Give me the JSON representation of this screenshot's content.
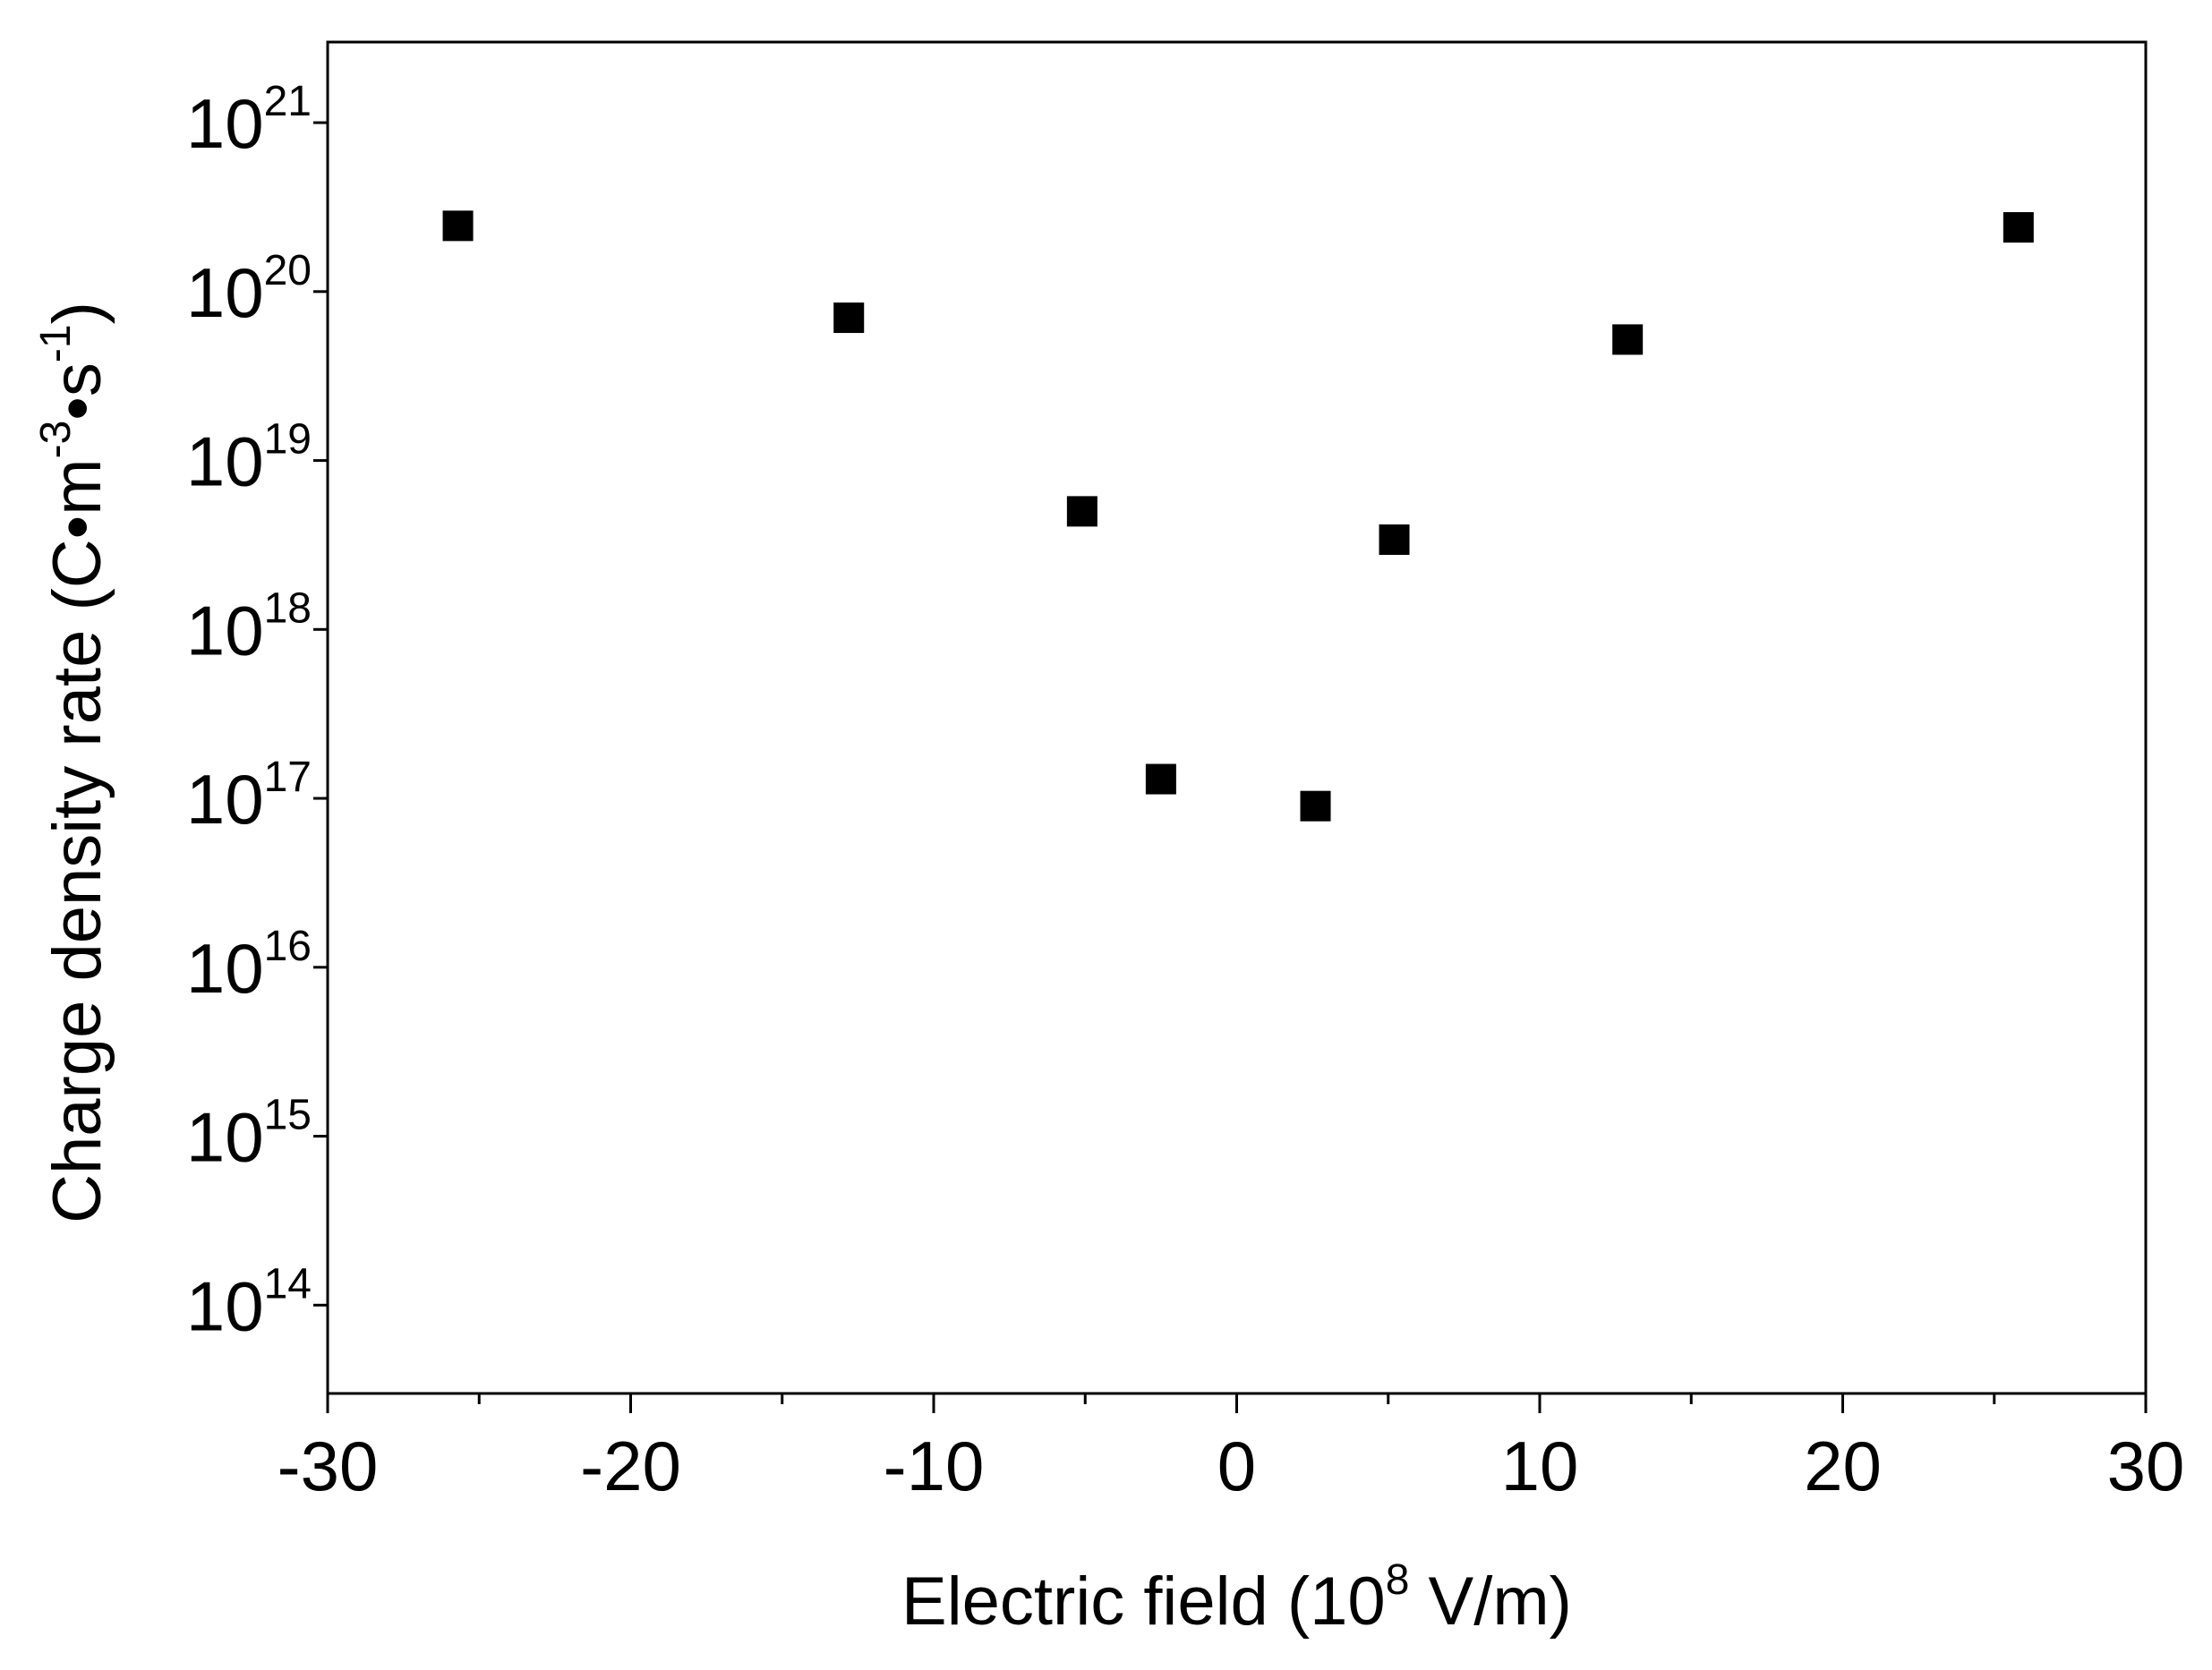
{
  "chart_data": {
    "type": "line",
    "xlabel": [
      "Electric field (10",
      "8",
      " V/m)"
    ],
    "ylabel": [
      "Charge density rate (C•m",
      "-3",
      "•s",
      "-1",
      ")"
    ],
    "x": [
      -25.7,
      -12.8,
      -5.1,
      -2.5,
      2.6,
      5.2,
      12.9,
      25.8
    ],
    "series": [
      {
        "color": "#000000",
        "marker": "square",
        "values": [
          2.45e+20,
          7e+19,
          5e+18,
          1.3e+17,
          9e+16,
          3.4e+18,
          5.2e+19,
          2.4e+20
        ]
      }
    ],
    "xlim": [
      -30,
      30
    ],
    "xticks": [
      -30,
      -20,
      -10,
      0,
      10,
      20,
      30
    ],
    "xminor_ticks": [
      -25,
      -15,
      -5,
      5,
      15,
      25
    ],
    "ylim": [
      30000000000000.0,
      3e+21
    ],
    "yscale": "log",
    "yticks": [
      {
        "value": 100000000000000.0,
        "label": "10",
        "sup": "14"
      },
      {
        "value": 1000000000000000.0,
        "label": "10",
        "sup": "15"
      },
      {
        "value": 1e+16,
        "label": "10",
        "sup": "16"
      },
      {
        "value": 1e+17,
        "label": "10",
        "sup": "17"
      },
      {
        "value": 1e+18,
        "label": "10",
        "sup": "18"
      },
      {
        "value": 1e+19,
        "label": "10",
        "sup": "19"
      },
      {
        "value": 1e+20,
        "label": "10",
        "sup": "20"
      },
      {
        "value": 1e+21,
        "label": "10",
        "sup": "21"
      }
    ],
    "grid": false
  }
}
